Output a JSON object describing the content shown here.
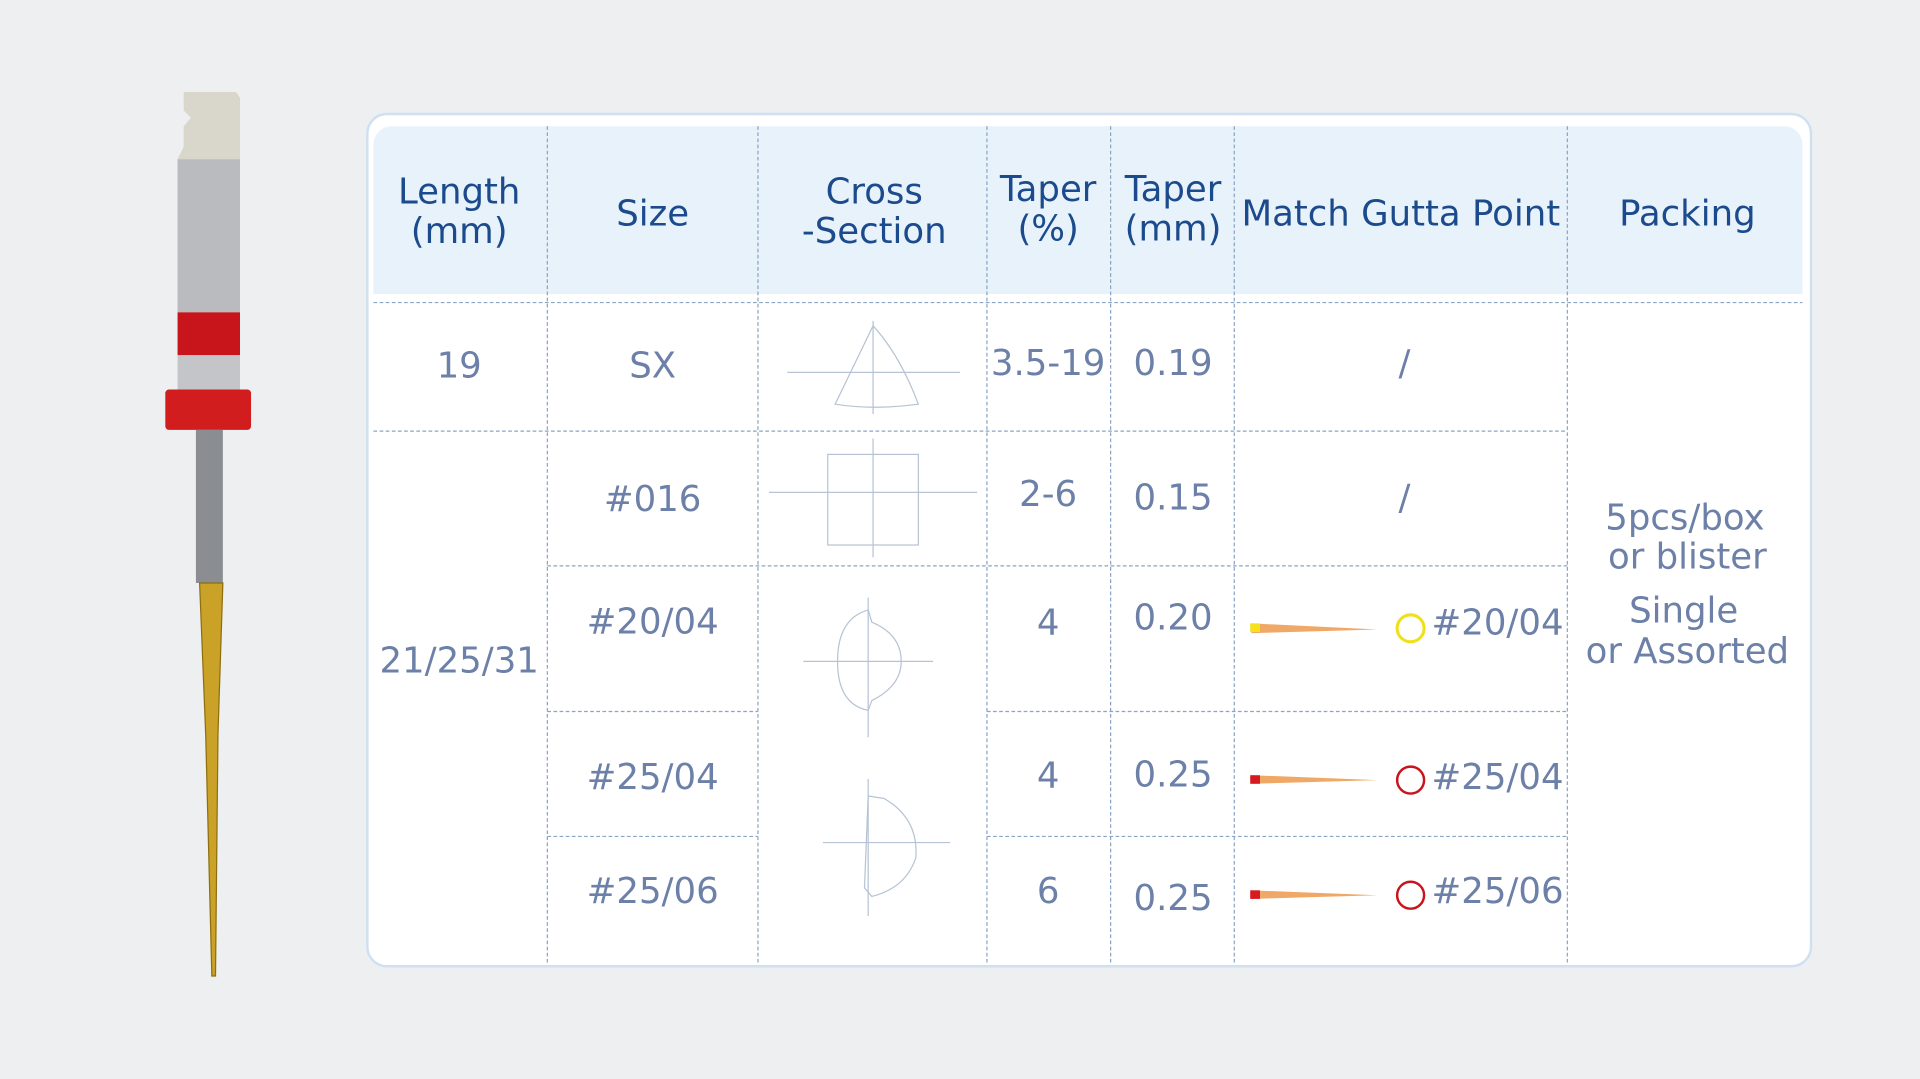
{
  "header": {
    "columns": [
      [
        "Length",
        "(mm)"
      ],
      [
        "Size"
      ],
      [
        "Cross",
        "-Section"
      ],
      [
        "Taper",
        "(%)"
      ],
      [
        "Taper",
        "(mm)"
      ],
      [
        "Match Gutta Point"
      ],
      [
        "Packing"
      ]
    ]
  },
  "table": {
    "length": [
      "19",
      "21/25/31"
    ],
    "rows": [
      [
        "SX",
        "3.5-19",
        "0.19",
        "/"
      ],
      [
        "#016",
        "2-6",
        "0.15",
        "/"
      ],
      [
        "#20/04",
        "4",
        "0.20",
        "#20/04"
      ],
      [
        "#25/04",
        "4",
        "0.25",
        "#25/04"
      ],
      [
        "#25/06",
        "6",
        "0.25",
        "#25/06"
      ]
    ],
    "packing": [
      [
        "5pcs/box",
        "or blister"
      ],
      [
        "Single",
        "or Assorted"
      ]
    ]
  }
}
